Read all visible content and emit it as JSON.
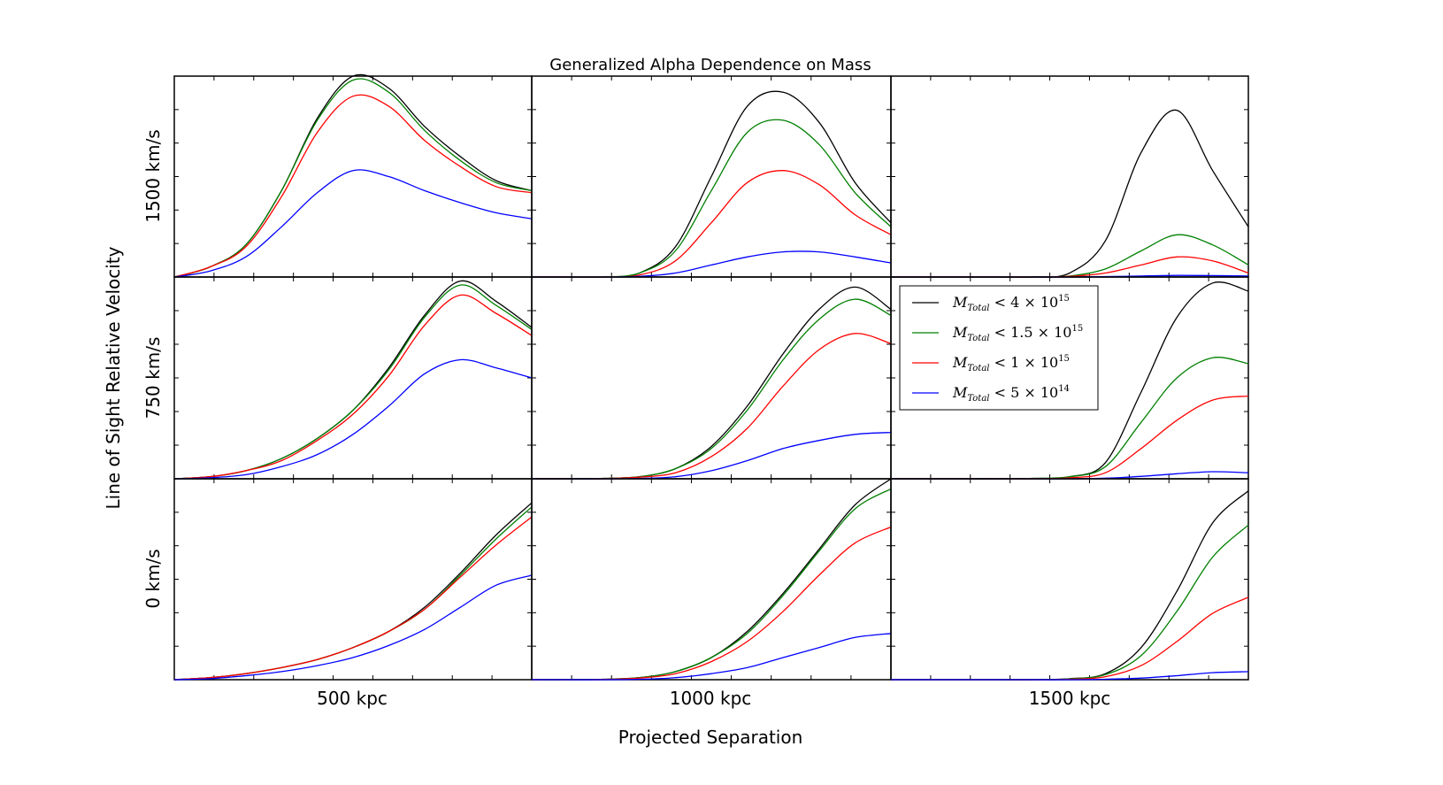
{
  "figure": {
    "title": "Generalized Alpha Dependence on Mass",
    "xlabel": "Projected Separation",
    "ylabel": "Line of Sight Relative Velocity"
  },
  "chart_data": {
    "type": "line",
    "title": "Generalized Alpha Dependence on Mass",
    "xlabel": "Projected Separation",
    "ylabel": "Line of Sight Relative Velocity",
    "row_labels": [
      "1500 km/s",
      "750 km/s",
      "0 km/s"
    ],
    "col_labels": [
      "500 kpc",
      "1000 kpc",
      "1500 kpc"
    ],
    "grid": false,
    "legend_position": "top-left of middle-right panel",
    "x_range": [
      0,
      1
    ],
    "y_range": [
      0,
      1
    ],
    "series_meta": [
      {
        "name": "M_Total < 4 × 10^15",
        "legend": {
          "base": "M",
          "sub": "Total",
          "rest": " < 4 × 10",
          "sup": "15"
        },
        "color": "#000000"
      },
      {
        "name": "M_Total < 1.5 × 10^15",
        "legend": {
          "base": "M",
          "sub": "Total",
          "rest": " < 1.5 × 10",
          "sup": "15"
        },
        "color": "#008000"
      },
      {
        "name": "M_Total < 1 × 10^15",
        "legend": {
          "base": "M",
          "sub": "Total",
          "rest": " < 1 × 10",
          "sup": "15"
        },
        "color": "#ff0000"
      },
      {
        "name": "M_Total < 5 × 10^14",
        "legend": {
          "base": "M",
          "sub": "Total",
          "rest": " < 5 × 10",
          "sup": "14"
        },
        "color": "#0000ff"
      }
    ],
    "x": [
      0.0,
      0.1,
      0.2,
      0.3,
      0.4,
      0.5,
      0.6,
      0.7,
      0.8,
      0.9,
      1.0
    ],
    "panels": [
      {
        "row": 0,
        "col": 0,
        "series": [
          {
            "values": [
              0.0,
              0.05,
              0.16,
              0.43,
              0.79,
              1.0,
              0.94,
              0.75,
              0.6,
              0.48,
              0.43
            ]
          },
          {
            "values": [
              0.0,
              0.05,
              0.16,
              0.43,
              0.78,
              0.98,
              0.92,
              0.73,
              0.58,
              0.47,
              0.43
            ]
          },
          {
            "values": [
              0.0,
              0.05,
              0.15,
              0.4,
              0.72,
              0.9,
              0.85,
              0.68,
              0.55,
              0.45,
              0.42
            ]
          },
          {
            "values": [
              0.0,
              0.03,
              0.1,
              0.25,
              0.42,
              0.53,
              0.5,
              0.43,
              0.37,
              0.32,
              0.29
            ]
          }
        ]
      },
      {
        "row": 0,
        "col": 1,
        "series": [
          {
            "values": [
              0.0,
              0.0,
              0.0,
              0.02,
              0.15,
              0.5,
              0.85,
              0.92,
              0.77,
              0.47,
              0.27
            ]
          },
          {
            "values": [
              0.0,
              0.0,
              0.0,
              0.02,
              0.13,
              0.43,
              0.72,
              0.78,
              0.66,
              0.42,
              0.25
            ]
          },
          {
            "values": [
              0.0,
              0.0,
              0.0,
              0.01,
              0.08,
              0.27,
              0.47,
              0.53,
              0.46,
              0.31,
              0.21
            ]
          },
          {
            "values": [
              0.0,
              0.0,
              0.0,
              0.003,
              0.02,
              0.06,
              0.1,
              0.125,
              0.125,
              0.1,
              0.07
            ]
          }
        ]
      },
      {
        "row": 0,
        "col": 2,
        "series": [
          {
            "values": [
              0.0,
              0.0,
              0.0,
              0.0,
              0.0,
              0.02,
              0.18,
              0.62,
              0.83,
              0.53,
              0.25
            ]
          },
          {
            "values": [
              0.0,
              0.0,
              0.0,
              0.0,
              0.0,
              0.005,
              0.04,
              0.13,
              0.21,
              0.16,
              0.06
            ]
          },
          {
            "values": [
              0.0,
              0.0,
              0.0,
              0.0,
              0.0,
              0.003,
              0.02,
              0.06,
              0.1,
              0.08,
              0.02
            ]
          },
          {
            "values": [
              0.0,
              0.0,
              0.0,
              0.0,
              0.0,
              0.0,
              0.002,
              0.005,
              0.008,
              0.007,
              0.005
            ]
          }
        ]
      },
      {
        "row": 1,
        "col": 0,
        "series": [
          {
            "values": [
              0.0,
              0.01,
              0.04,
              0.1,
              0.2,
              0.34,
              0.55,
              0.81,
              0.98,
              0.88,
              0.75
            ]
          },
          {
            "values": [
              0.0,
              0.01,
              0.04,
              0.1,
              0.2,
              0.34,
              0.54,
              0.8,
              0.96,
              0.86,
              0.74
            ]
          },
          {
            "values": [
              0.0,
              0.01,
              0.04,
              0.09,
              0.19,
              0.32,
              0.51,
              0.76,
              0.91,
              0.82,
              0.71
            ]
          },
          {
            "values": [
              0.0,
              0.005,
              0.02,
              0.06,
              0.12,
              0.22,
              0.36,
              0.52,
              0.59,
              0.55,
              0.5
            ]
          }
        ]
      },
      {
        "row": 1,
        "col": 1,
        "series": [
          {
            "values": [
              0.0,
              0.0,
              0.002,
              0.01,
              0.05,
              0.16,
              0.36,
              0.62,
              0.84,
              0.95,
              0.84
            ]
          },
          {
            "values": [
              0.0,
              0.0,
              0.002,
              0.01,
              0.05,
              0.15,
              0.34,
              0.59,
              0.79,
              0.89,
              0.81
            ]
          },
          {
            "values": [
              0.0,
              0.0,
              0.001,
              0.008,
              0.03,
              0.11,
              0.25,
              0.46,
              0.64,
              0.72,
              0.67
            ]
          },
          {
            "values": [
              0.0,
              0.0,
              0.0,
              0.002,
              0.01,
              0.04,
              0.09,
              0.15,
              0.19,
              0.22,
              0.23
            ]
          }
        ]
      },
      {
        "row": 1,
        "col": 2,
        "series": [
          {
            "values": [
              0.0,
              0.0,
              0.0,
              0.0,
              0.002,
              0.01,
              0.08,
              0.43,
              0.8,
              0.97,
              0.93
            ]
          },
          {
            "values": [
              0.0,
              0.0,
              0.0,
              0.0,
              0.002,
              0.01,
              0.06,
              0.28,
              0.5,
              0.6,
              0.57
            ]
          },
          {
            "values": [
              0.0,
              0.0,
              0.0,
              0.0,
              0.001,
              0.005,
              0.03,
              0.15,
              0.29,
              0.39,
              0.41
            ]
          },
          {
            "values": [
              0.0,
              0.0,
              0.0,
              0.0,
              0.0,
              0.0,
              0.003,
              0.012,
              0.025,
              0.035,
              0.03
            ]
          }
        ]
      },
      {
        "row": 2,
        "col": 0,
        "series": [
          {
            "values": [
              0.0,
              0.01,
              0.03,
              0.06,
              0.1,
              0.16,
              0.24,
              0.36,
              0.53,
              0.72,
              0.88
            ]
          },
          {
            "values": [
              0.0,
              0.01,
              0.03,
              0.06,
              0.1,
              0.16,
              0.24,
              0.35,
              0.52,
              0.7,
              0.86
            ]
          },
          {
            "values": [
              0.0,
              0.01,
              0.03,
              0.06,
              0.1,
              0.16,
              0.24,
              0.35,
              0.51,
              0.67,
              0.81
            ]
          },
          {
            "values": [
              0.0,
              0.005,
              0.02,
              0.04,
              0.07,
              0.11,
              0.17,
              0.25,
              0.36,
              0.47,
              0.52
            ]
          }
        ]
      },
      {
        "row": 2,
        "col": 1,
        "series": [
          {
            "values": [
              0.0,
              0.0,
              0.002,
              0.01,
              0.04,
              0.11,
              0.24,
              0.43,
              0.65,
              0.87,
              1.0
            ]
          },
          {
            "values": [
              0.0,
              0.0,
              0.002,
              0.01,
              0.04,
              0.11,
              0.23,
              0.42,
              0.64,
              0.85,
              0.95
            ]
          },
          {
            "values": [
              0.0,
              0.0,
              0.001,
              0.008,
              0.03,
              0.09,
              0.19,
              0.34,
              0.52,
              0.68,
              0.76
            ]
          },
          {
            "values": [
              0.0,
              0.0,
              0.0,
              0.002,
              0.01,
              0.03,
              0.06,
              0.11,
              0.16,
              0.21,
              0.23
            ]
          }
        ]
      },
      {
        "row": 2,
        "col": 2,
        "series": [
          {
            "values": [
              0.0,
              0.0,
              0.0,
              0.0,
              0.0,
              0.005,
              0.03,
              0.16,
              0.44,
              0.78,
              0.94
            ]
          },
          {
            "values": [
              0.0,
              0.0,
              0.0,
              0.0,
              0.0,
              0.004,
              0.025,
              0.12,
              0.34,
              0.61,
              0.77
            ]
          },
          {
            "values": [
              0.0,
              0.0,
              0.0,
              0.0,
              0.0,
              0.002,
              0.015,
              0.07,
              0.19,
              0.33,
              0.41
            ]
          },
          {
            "values": [
              0.0,
              0.0,
              0.0,
              0.0,
              0.0,
              0.0,
              0.002,
              0.008,
              0.02,
              0.035,
              0.04
            ]
          }
        ]
      }
    ]
  }
}
